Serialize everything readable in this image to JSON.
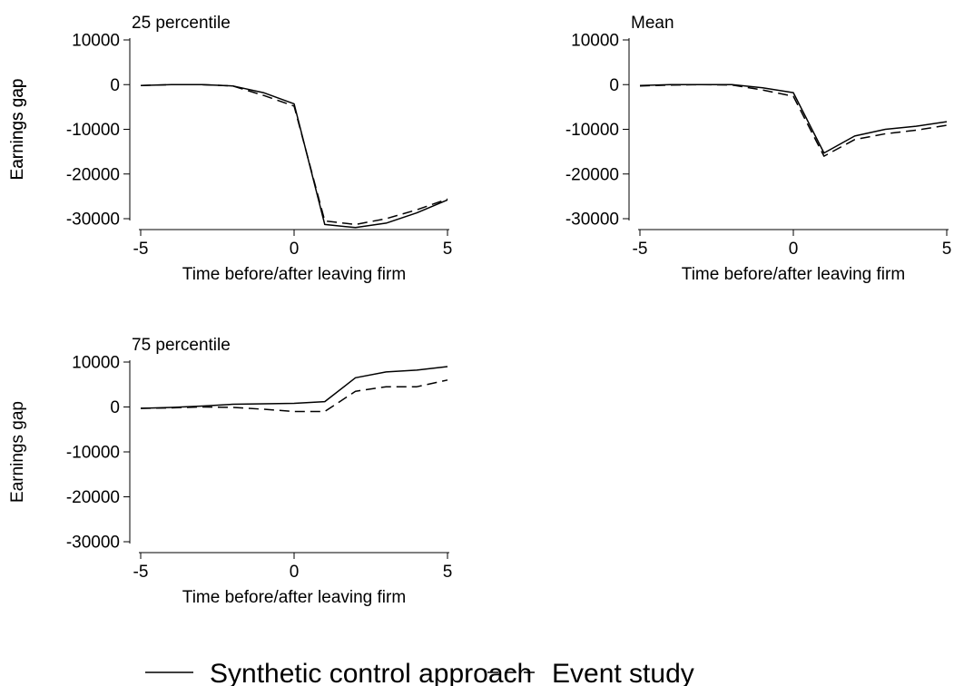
{
  "chart_data": [
    {
      "type": "line",
      "title": "25 percentile",
      "xlabel": "Time before/after leaving firm",
      "ylabel": "Earnings gap",
      "xlim": [
        -5,
        5
      ],
      "ylim": [
        -30000,
        10000
      ],
      "x_ticks": [
        -5,
        0,
        5
      ],
      "y_ticks": [
        10000,
        0,
        -10000,
        -20000,
        -30000
      ],
      "x": [
        -5,
        -4,
        -3,
        -2,
        -1,
        0,
        1,
        2,
        3,
        4,
        5
      ],
      "grid": false,
      "series": [
        {
          "values": [
            -200,
            0,
            0,
            -300,
            -1800,
            -4300,
            -31300,
            -32000,
            -31000,
            -28700,
            -25800
          ]
        },
        {
          "values": [
            -200,
            0,
            0,
            -300,
            -2400,
            -4800,
            -30500,
            -31300,
            -30000,
            -28000,
            -25600
          ]
        }
      ]
    },
    {
      "type": "line",
      "title": "Mean",
      "xlabel": "Time before/after leaving firm",
      "ylabel": "Earnings gap",
      "xlim": [
        -5,
        5
      ],
      "ylim": [
        -30000,
        10000
      ],
      "x_ticks": [
        -5,
        0,
        5
      ],
      "y_ticks": [
        10000,
        0,
        -10000,
        -20000,
        -30000
      ],
      "x": [
        -5,
        -4,
        -3,
        -2,
        -1,
        0,
        1,
        2,
        3,
        4,
        5
      ],
      "grid": false,
      "series": [
        {
          "values": [
            -200,
            0,
            0,
            0,
            -700,
            -1800,
            -15300,
            -11500,
            -10000,
            -9300,
            -8300
          ]
        },
        {
          "values": [
            -300,
            -100,
            0,
            -100,
            -1200,
            -2600,
            -16000,
            -12300,
            -11000,
            -10200,
            -9100
          ]
        }
      ]
    },
    {
      "type": "line",
      "title": "75 percentile",
      "xlabel": "Time before/after leaving firm",
      "ylabel": "Earnings gap",
      "xlim": [
        -5,
        5
      ],
      "ylim": [
        -30000,
        10000
      ],
      "x_ticks": [
        -5,
        0,
        5
      ],
      "y_ticks": [
        10000,
        0,
        -10000,
        -20000,
        -30000
      ],
      "x": [
        -5,
        -4,
        -3,
        -2,
        -1,
        0,
        1,
        2,
        3,
        4,
        5
      ],
      "grid": false,
      "series": [
        {
          "values": [
            -300,
            -100,
            200,
            600,
            700,
            800,
            1200,
            6500,
            7800,
            8200,
            9000
          ]
        },
        {
          "values": [
            -300,
            -200,
            0,
            -100,
            -500,
            -1000,
            -1000,
            3500,
            4500,
            4500,
            6000
          ]
        }
      ]
    }
  ],
  "legend": {
    "placement": "bottom",
    "entries": [
      {
        "label": "Synthetic control approach",
        "style": "solid"
      },
      {
        "label": "Event study",
        "style": "dashed"
      }
    ]
  }
}
